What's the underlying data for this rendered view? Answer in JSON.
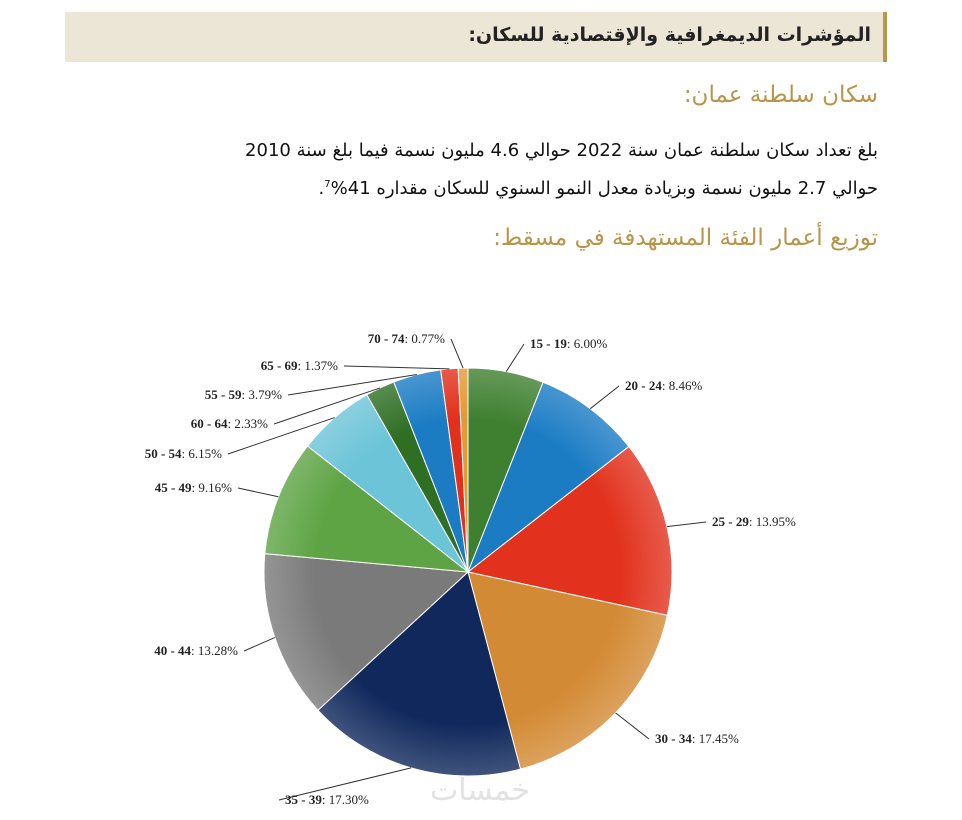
{
  "header": {
    "title": "المؤشرات الديمغرافية والإقتصادية للسكان:"
  },
  "section": {
    "heading": "سكان سلطنة عمان:",
    "paragraph": {
      "line1": "بلغ تعداد سكان سلطنة عمان سنة 2022 حوالي 4.6 مليون نسمة فيما بلغ سنة 2010",
      "line2": "حوالي 2.7 مليون نسمة وبزيادة معدل النمو السنوي للسكان مقداره 41%",
      "footnote": "7",
      "end": "."
    }
  },
  "chart_heading": "توزيع أعمار الفئة المستهدفة في مسقط:",
  "chart_data": {
    "type": "pie",
    "categories": [
      "15 - 19",
      "20 - 24",
      "25 - 29",
      "30 - 34",
      "35 - 39",
      "40 - 44",
      "45 - 49",
      "50 - 54",
      "60 - 64",
      "55 - 59",
      "65 - 69",
      "70 - 74"
    ],
    "values": [
      6.0,
      8.46,
      13.95,
      17.45,
      17.3,
      13.28,
      9.16,
      6.15,
      2.33,
      3.79,
      1.37,
      0.77
    ],
    "value_labels": [
      ": 6.00%",
      ": 8.46%",
      ": 13.95%",
      ": 17.45%",
      ": 17.30%",
      ": 13.28%",
      ": 9.16%",
      ": 6.15%",
      ": 2.33%",
      ": 3.79%",
      ": 1.37%",
      ": 0.77%"
    ],
    "colors": [
      "#3f8030",
      "#1b7cc4",
      "#e2321e",
      "#d38a34",
      "#10285c",
      "#7a7a7a",
      "#5ea444",
      "#6cc4d8",
      "#2f6f24",
      "#1b7cc4",
      "#e2301c",
      "#e39a34"
    ]
  },
  "watermark": "خمسات"
}
